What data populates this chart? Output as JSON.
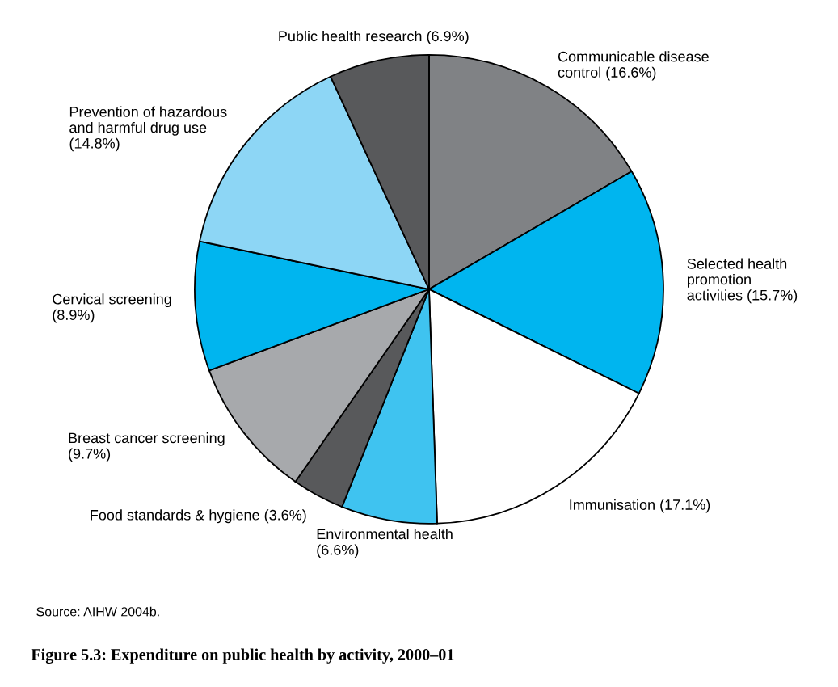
{
  "chart_data": {
    "type": "pie",
    "title": "Figure 5.3: Expenditure on public health by activity, 2000–01",
    "categories": [
      "Communicable disease\ncontrol (16.6%)",
      "Selected health\npromotion\nactivities (15.7%)",
      "Immunisation (17.1%)",
      "Environmental health\n(6.6%)",
      "Food standards & hygiene (3.6%)",
      "Breast cancer screening\n(9.7%)",
      "Cervical screening\n(8.9%)",
      "Prevention of hazardous\nand harmful drug use\n(14.8%)",
      "Public health research (6.9%)"
    ],
    "values": [
      16.6,
      15.7,
      17.1,
      6.6,
      3.6,
      9.7,
      8.9,
      14.8,
      6.9
    ],
    "colors": [
      "#808285",
      "#00b5ef",
      "#ffffff",
      "#3fc3f0",
      "#58595b",
      "#a7a9ac",
      "#00b5ef",
      "#8dd6f5",
      "#58595b"
    ],
    "annotations": [
      "Source: AIHW 2004b."
    ]
  }
}
